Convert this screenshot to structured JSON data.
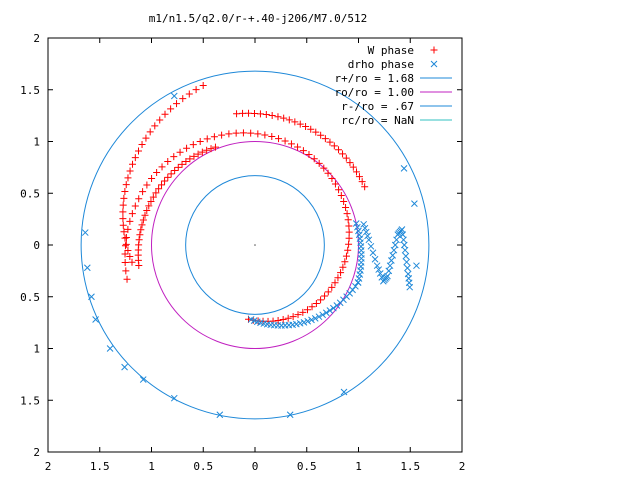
{
  "chart_data": {
    "type": "scatter",
    "title": "m1/n1.5/q2.0/r-+.40-j206/M7.0/512",
    "xlim": [
      -2,
      2
    ],
    "ylim": [
      -2,
      2
    ],
    "x_tick_values": [
      -2,
      -1.5,
      -1,
      -0.5,
      0,
      0.5,
      1,
      1.5,
      2
    ],
    "x_tick_labels": [
      "2",
      "1.5",
      "1",
      "0.5",
      "0",
      "0.5",
      "1",
      "1.5",
      "2"
    ],
    "y_tick_values": [
      2,
      1.5,
      1,
      0.5,
      0,
      -0.5,
      -1,
      -1.5,
      -2
    ],
    "y_tick_labels": [
      "2",
      "1.5",
      "1",
      "0.5",
      "0",
      "0.5",
      "1",
      "1.5",
      "2"
    ],
    "grid": false,
    "legend_position": "top-right",
    "series": [
      {
        "name": "W phase",
        "kind": "points",
        "marker": "plus",
        "color": "#ff0000",
        "arms": [
          {
            "r_start": 0.72,
            "r_end": 1.28,
            "theta_start_deg": -95,
            "theta_end_deg": 195,
            "count": 80
          },
          {
            "r_start": 1.2,
            "r_end": 1.62,
            "theta_start_deg": 188,
            "theta_end_deg": 108,
            "count": 30
          },
          {
            "r_start": 1.14,
            "r_end": 1.02,
            "theta_start_deg": 190,
            "theta_end_deg": 112,
            "count": 32
          },
          {
            "r_start": 1.28,
            "r_end": 1.2,
            "theta_start_deg": 98,
            "theta_end_deg": 28,
            "count": 28
          }
        ]
      },
      {
        "name": "drho phase",
        "kind": "points",
        "marker": "cross",
        "color": "#1e88d8",
        "arms": [
          {
            "r_start": 0.72,
            "r_end": 1.06,
            "theta_start_deg": -93,
            "theta_end_deg": -20,
            "count": 32
          },
          {
            "r_start": 1.06,
            "r_end": 1.0,
            "theta_start_deg": -20,
            "theta_end_deg": 12,
            "count": 16
          }
        ],
        "zigzag": [
          [
            1.05,
            0.2
          ],
          [
            1.1,
            0.05
          ],
          [
            1.18,
            -0.2
          ],
          [
            1.24,
            -0.35
          ],
          [
            1.28,
            -0.3
          ],
          [
            1.33,
            -0.1
          ],
          [
            1.38,
            0.1
          ],
          [
            1.42,
            0.15
          ],
          [
            1.45,
            -0.05
          ],
          [
            1.48,
            -0.28
          ],
          [
            1.5,
            -0.45
          ]
        ],
        "outer_points": [
          [
            -0.78,
            1.44
          ],
          [
            1.44,
            0.74
          ],
          [
            1.54,
            0.4
          ],
          [
            -1.64,
            0.12
          ],
          [
            -1.62,
            -0.22
          ],
          [
            -1.58,
            -0.5
          ],
          [
            -1.54,
            -0.72
          ],
          [
            -1.4,
            -1.0
          ],
          [
            -1.26,
            -1.18
          ],
          [
            -1.08,
            -1.3
          ],
          [
            -0.78,
            -1.48
          ],
          [
            -0.34,
            -1.64
          ],
          [
            0.34,
            -1.64
          ],
          [
            0.86,
            -1.42
          ],
          [
            1.56,
            -0.2
          ]
        ]
      },
      {
        "name": "r+/ro = 1.68",
        "kind": "circle",
        "radius": 1.68,
        "center": [
          0,
          0
        ],
        "color": "#1e88d8"
      },
      {
        "name": "ro/ro = 1.00",
        "kind": "circle",
        "radius": 1.0,
        "center": [
          0,
          0
        ],
        "color": "#c020c0"
      },
      {
        "name": "r-/ro = .67",
        "kind": "circle",
        "radius": 0.67,
        "center": [
          0,
          0
        ],
        "color": "#1e88d8"
      },
      {
        "name": "rc/ro = NaN",
        "kind": "circle",
        "radius": null,
        "center": [
          0,
          0
        ],
        "color": "#30c0c0"
      }
    ]
  }
}
